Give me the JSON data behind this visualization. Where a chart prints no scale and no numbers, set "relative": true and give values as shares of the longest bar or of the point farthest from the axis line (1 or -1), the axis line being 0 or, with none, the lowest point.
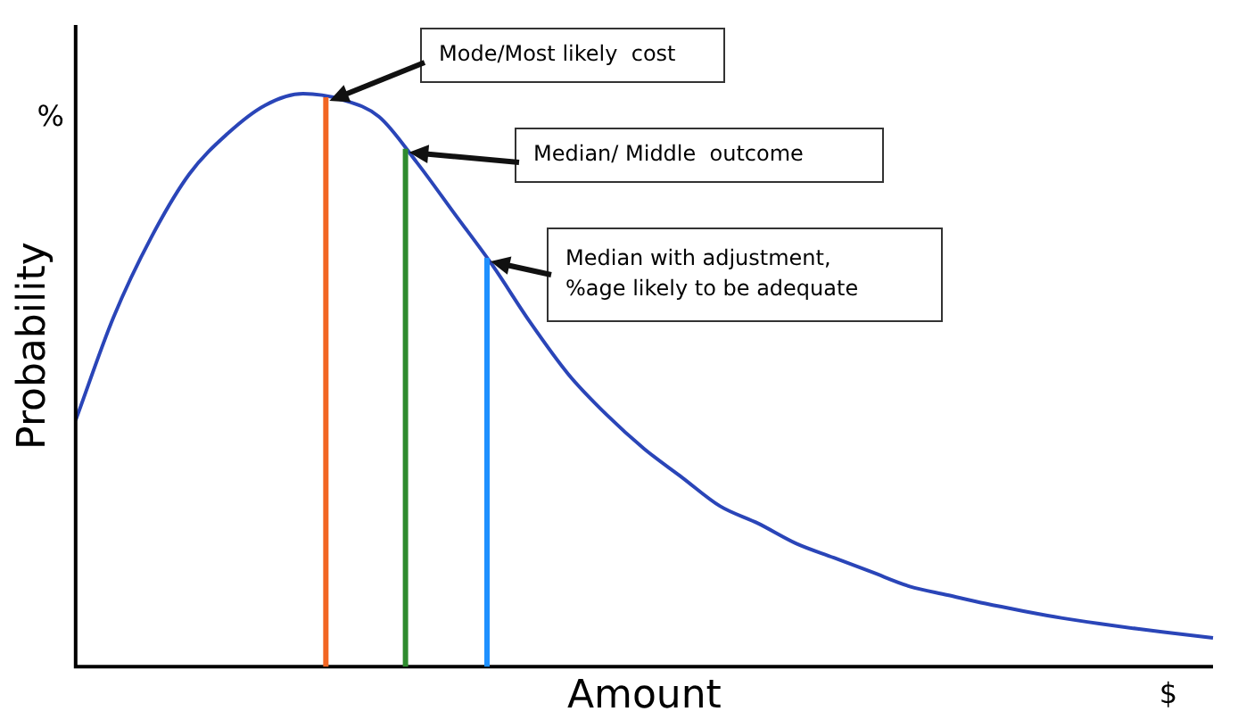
{
  "chart_data": {
    "type": "line",
    "relative": true,
    "xlabel": "Amount",
    "ylabel": "Probability",
    "categories": [
      null,
      null,
      null,
      null,
      null,
      null,
      null,
      null,
      null,
      null,
      null,
      null,
      null,
      null,
      null,
      null,
      null,
      null,
      null,
      null,
      null,
      null,
      null,
      null,
      null,
      null,
      null,
      null,
      null,
      null,
      null
    ],
    "series": [
      {
        "color": "#2a45b8",
        "values": [
          0.43,
          0.61,
          0.75,
          0.86,
          0.93,
          0.98,
          1.0,
          0.99,
          0.96,
          0.88,
          0.79,
          0.7,
          0.6,
          0.51,
          0.44,
          0.38,
          0.33,
          0.28,
          0.25,
          0.215,
          0.19,
          0.165,
          0.14,
          0.125,
          0.11,
          0.097,
          0.085,
          0.075,
          0.066,
          0.058,
          0.05
        ]
      }
    ],
    "annotations": [
      "Mode/Most likely  cost",
      "Median/ Middle  outcome",
      "Median with adjustment,\n%age likely to be adequate",
      "%",
      "$"
    ],
    "grid": false,
    "legend": false,
    "marker": "none",
    "line_style": "solid"
  }
}
